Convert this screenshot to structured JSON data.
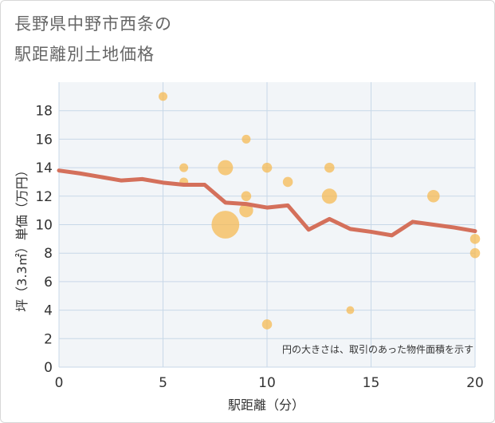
{
  "title_lines": [
    "長野県中野市西条の",
    "駅距離別土地価格"
  ],
  "colors": {
    "line": "#d4705b",
    "bubble": "#f5b94e",
    "grid": "#c8d8e8",
    "plot_background": "#f2f5f8"
  },
  "chart_data": {
    "type": "scatter",
    "xlabel": "駅距離（分）",
    "ylabel": "坪（3.3㎡）単価（万円）",
    "xlim": [
      0,
      20
    ],
    "ylim": [
      0,
      20
    ],
    "xticks": [
      0,
      5,
      10,
      15,
      20
    ],
    "yticks": [
      0,
      2,
      4,
      6,
      8,
      10,
      12,
      14,
      16,
      18
    ],
    "note": "円の大きさは、取引のあった物件面積を示す",
    "bubbles": [
      {
        "x": 5,
        "y": 19,
        "size": 1
      },
      {
        "x": 6,
        "y": 14,
        "size": 1
      },
      {
        "x": 6,
        "y": 13,
        "size": 1
      },
      {
        "x": 8,
        "y": 14,
        "size": 3
      },
      {
        "x": 8,
        "y": 10,
        "size": 10
      },
      {
        "x": 9,
        "y": 16,
        "size": 1
      },
      {
        "x": 9,
        "y": 12,
        "size": 1.3
      },
      {
        "x": 9,
        "y": 11,
        "size": 2.5
      },
      {
        "x": 10,
        "y": 14,
        "size": 1.3
      },
      {
        "x": 10,
        "y": 3,
        "size": 1.3
      },
      {
        "x": 11,
        "y": 13,
        "size": 1.3
      },
      {
        "x": 13,
        "y": 14,
        "size": 1.3
      },
      {
        "x": 13,
        "y": 12,
        "size": 3
      },
      {
        "x": 14,
        "y": 4,
        "size": 0.8
      },
      {
        "x": 18,
        "y": 12,
        "size": 2
      },
      {
        "x": 20,
        "y": 9,
        "size": 1.3
      },
      {
        "x": 20,
        "y": 8,
        "size": 1.3
      }
    ],
    "trend_line": {
      "x": [
        0,
        1,
        2,
        3,
        4,
        5,
        6,
        7,
        8,
        9,
        10,
        11,
        12,
        13,
        14,
        15,
        16,
        17,
        18,
        19,
        20
      ],
      "y": [
        13.8,
        13.6,
        13.35,
        13.1,
        13.2,
        12.95,
        12.8,
        12.8,
        11.55,
        11.45,
        11.2,
        11.35,
        9.65,
        10.4,
        9.7,
        9.5,
        9.25,
        10.2,
        10.0,
        9.8,
        9.55
      ]
    }
  }
}
